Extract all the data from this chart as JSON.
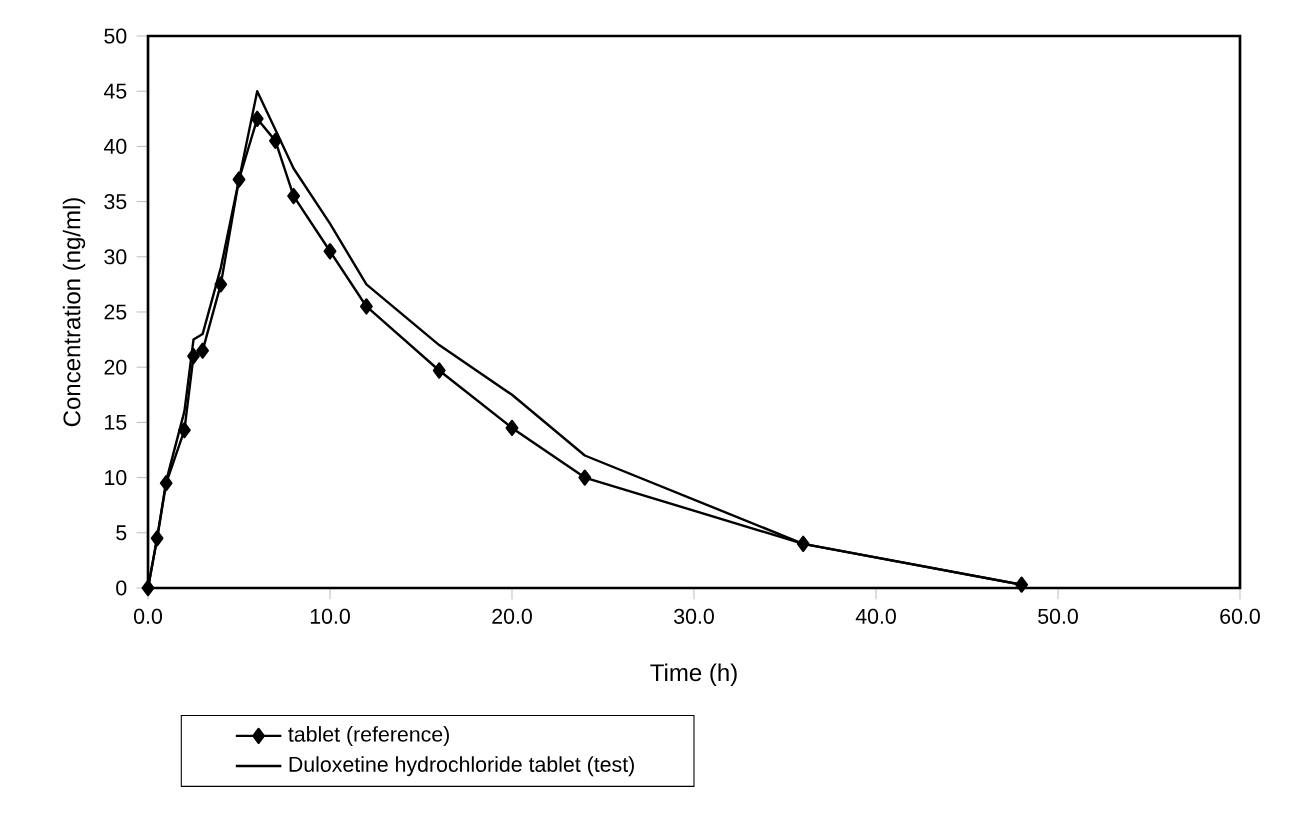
{
  "chart_data": {
    "type": "line",
    "xlabel": "Time (h)",
    "ylabel": "Concentration (ng/ml)",
    "xlim": [
      0,
      60
    ],
    "xticks": [
      {
        "value": 0,
        "label": "0.0"
      },
      {
        "value": 10,
        "label": "10.0"
      },
      {
        "value": 20,
        "label": "20.0"
      },
      {
        "value": 30,
        "label": "30.0"
      },
      {
        "value": 40,
        "label": "40.0"
      },
      {
        "value": 50,
        "label": "50.0"
      },
      {
        "value": 60,
        "label": "60.0"
      }
    ],
    "ylim": [
      0,
      50
    ],
    "yticks": [
      0,
      5,
      10,
      15,
      20,
      25,
      30,
      35,
      40,
      45,
      50
    ],
    "legend": "bottom",
    "grid": false,
    "series": [
      {
        "name": "tablet (reference)",
        "color": "#000000",
        "marker": "diamond",
        "x": [
          0,
          0.5,
          1,
          2,
          2.5,
          3,
          4,
          5,
          6,
          7,
          8,
          10,
          12,
          16,
          20,
          24,
          36,
          48
        ],
        "values": [
          0,
          4.5,
          9.5,
          14.3,
          21,
          21.5,
          27.5,
          37,
          42.5,
          40.5,
          35.5,
          30.5,
          25.5,
          19.7,
          14.5,
          10,
          4,
          0.3
        ]
      },
      {
        "name": "Duloxetine hydrochloride tablet (test)",
        "color": "#000000",
        "marker": "none",
        "x": [
          0,
          0.5,
          1,
          2,
          2.5,
          3,
          4,
          5,
          6,
          7,
          8,
          10,
          12,
          16,
          20,
          24,
          36,
          48
        ],
        "values": [
          0,
          4.5,
          9.7,
          16,
          22.5,
          23,
          29,
          37,
          45,
          41.5,
          38,
          33,
          27.5,
          22,
          17.5,
          12,
          4,
          0.3
        ]
      }
    ]
  }
}
